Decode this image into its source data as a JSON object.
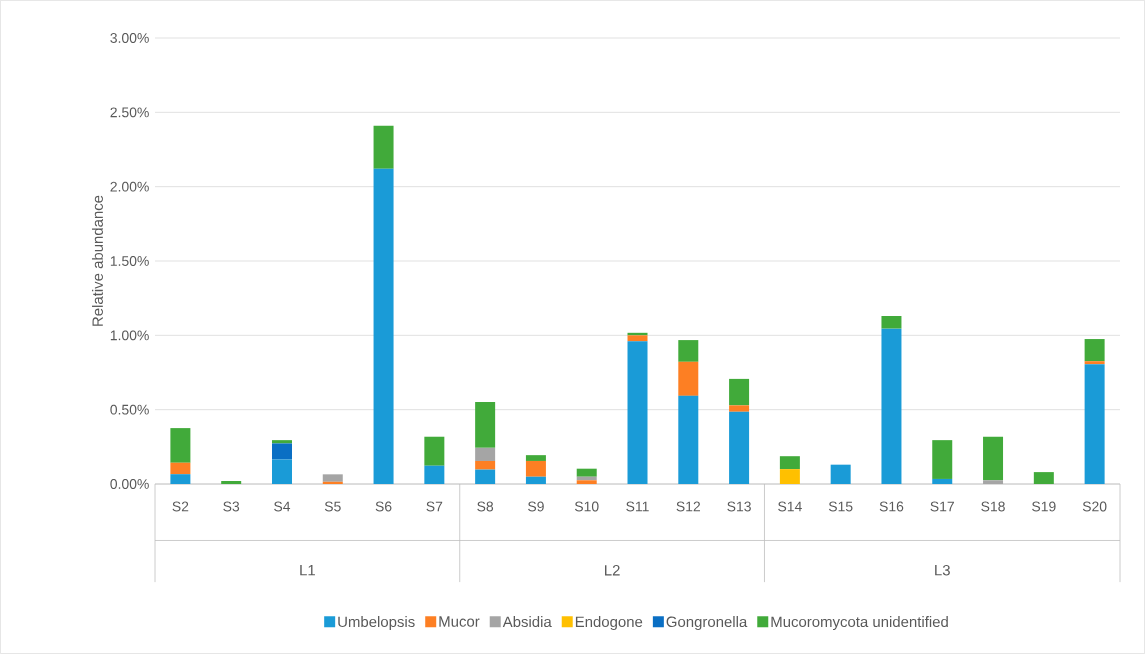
{
  "chart_data": {
    "type": "bar",
    "stacked": true,
    "ylabel": "Relative abundance",
    "categories": [
      "S2",
      "S3",
      "S4",
      "S5",
      "S6",
      "S7",
      "S8",
      "S9",
      "S10",
      "S11",
      "S12",
      "S13",
      "S14",
      "S15",
      "S16",
      "S17",
      "S18",
      "S19",
      "S20"
    ],
    "series": [
      {
        "name": "Umbelopsis",
        "color": "#1a9bd7",
        "values": [
          0.066,
          0,
          0.165,
          0,
          2.12,
          0.123,
          0.097,
          0.049,
          0,
          0.96,
          0.593,
          0.486,
          0,
          0.13,
          1.045,
          0.034,
          0,
          0,
          0.806
        ]
      },
      {
        "name": "Mucor",
        "color": "#fd7f23",
        "values": [
          0.077,
          0,
          0,
          0.015,
          0,
          0,
          0.058,
          0.106,
          0.025,
          0.04,
          0.229,
          0.043,
          0,
          0,
          0,
          0,
          0,
          0,
          0.02
        ]
      },
      {
        "name": "Absidia",
        "color": "#a5a5a5",
        "values": [
          0,
          0,
          0,
          0.05,
          0,
          0,
          0.088,
          0,
          0.024,
          0,
          0,
          0,
          0,
          0,
          0,
          0,
          0.025,
          0,
          0
        ]
      },
      {
        "name": "Endogone",
        "color": "#ffc000",
        "values": [
          0,
          0,
          0,
          0,
          0,
          0,
          0,
          0,
          0,
          0,
          0,
          0,
          0.1,
          0,
          0,
          0,
          0,
          0,
          0
        ]
      },
      {
        "name": "Gongronella",
        "color": "#0a6fc4",
        "values": [
          0,
          0,
          0.108,
          0,
          0,
          0,
          0,
          0,
          0,
          0,
          0,
          0,
          0,
          0,
          0,
          0,
          0,
          0,
          0
        ]
      },
      {
        "name": "Mucoromycota unidentified",
        "color": "#41aa3a",
        "values": [
          0.233,
          0.02,
          0.022,
          0,
          0.29,
          0.195,
          0.309,
          0.039,
          0.054,
          0.017,
          0.146,
          0.178,
          0.087,
          0,
          0.085,
          0.261,
          0.293,
          0.08,
          0.149
        ]
      }
    ],
    "ylim": [
      0,
      3
    ],
    "yticks": [
      {
        "value": 0,
        "label": "0.00%"
      },
      {
        "value": 0.5,
        "label": "0.50%"
      },
      {
        "value": 1,
        "label": "1.00%"
      },
      {
        "value": 1.5,
        "label": "1.50%"
      },
      {
        "value": 2,
        "label": "2.00%"
      },
      {
        "value": 2.5,
        "label": "2.50%"
      },
      {
        "value": 3,
        "label": "3.00%"
      }
    ],
    "grid": "y",
    "legend": "bottom",
    "annotations": [
      "L1",
      "L2",
      "L3"
    ]
  }
}
